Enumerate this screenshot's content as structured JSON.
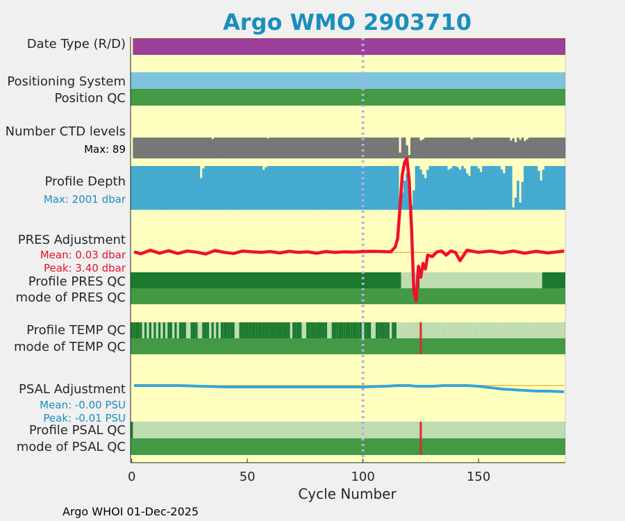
{
  "chart_data": {
    "type": "line",
    "title": "Argo WMO 2903710",
    "xlabel": "Cycle Number",
    "xlim": [
      -0.5,
      187.5
    ],
    "xticks": [
      0,
      50,
      100,
      150
    ],
    "footer": "Argo WHOI 01-Dec-2025",
    "reference_cycle": 100,
    "colors": {
      "background": "#ffffc0",
      "title": "#1a8fbf",
      "date_type": "#9b3f98",
      "positioning": "#7ec4de",
      "qc_good": "#1a7a2e",
      "qc_mode_good": "#449a44",
      "qc_light": "#bfdcb0",
      "ctd": "#777777",
      "depth": "#45aacf",
      "pres_line": "#f0102d",
      "psal_line": "#3aa4d4",
      "zero_line": "#f2b840",
      "marker": "#dd2a2a",
      "ref_line": "#b0b0dd"
    },
    "labels": {
      "date_type": "Date Type (R/D)",
      "positioning": "Positioning System",
      "position_qc": "Position QC",
      "ctd_levels": "Number CTD levels",
      "ctd_max": "Max: 89",
      "profile_depth": "Profile Depth",
      "depth_max": "Max: 2001 dbar",
      "pres_adj": "PRES Adjustment",
      "pres_mean": "Mean: 0.03 dbar",
      "pres_peak": "Peak: 3.40 dbar",
      "profile_pres_qc": "Profile PRES QC",
      "mode_pres_qc": "mode of PRES QC",
      "profile_temp_qc": "Profile TEMP QC",
      "mode_temp_qc": "mode of TEMP QC",
      "psal_adj": "PSAL Adjustment",
      "psal_mean": "Mean: -0.00 PSU",
      "psal_peak": "Peak: -0.01 PSU",
      "profile_psal_qc": "Profile PSAL QC",
      "mode_psal_qc": "mode of PSAL QC"
    },
    "ctd_levels": {
      "max": 89,
      "typical": 72,
      "dropouts": [
        [
          35,
          67
        ],
        [
          59,
          69
        ],
        [
          116,
          20
        ],
        [
          119,
          45
        ],
        [
          120,
          12
        ],
        [
          125,
          62
        ],
        [
          126,
          66
        ],
        [
          147,
          66
        ],
        [
          164,
          62
        ],
        [
          165,
          70
        ],
        [
          166,
          56
        ],
        [
          168,
          64
        ],
        [
          170,
          60
        ],
        [
          171,
          66
        ]
      ]
    },
    "profile_depth": {
      "max_dbar": 2001,
      "typical_dbar": 1800,
      "dropouts": [
        [
          30,
          1300
        ],
        [
          31,
          1700
        ],
        [
          57,
          1650
        ],
        [
          58,
          1750
        ],
        [
          116,
          400
        ],
        [
          117,
          700
        ],
        [
          118,
          1200
        ],
        [
          119,
          1500
        ],
        [
          120,
          600
        ],
        [
          121,
          200
        ],
        [
          122,
          800
        ],
        [
          125,
          1650
        ],
        [
          126,
          1450
        ],
        [
          127,
          1300
        ],
        [
          128,
          1650
        ],
        [
          137,
          1650
        ],
        [
          138,
          1700
        ],
        [
          141,
          1750
        ],
        [
          142,
          1650
        ],
        [
          144,
          1700
        ],
        [
          145,
          1500
        ],
        [
          146,
          1400
        ],
        [
          150,
          1700
        ],
        [
          151,
          1550
        ],
        [
          160,
          1650
        ],
        [
          161,
          1500
        ],
        [
          165,
          100
        ],
        [
          166,
          500
        ],
        [
          167,
          1200
        ],
        [
          168,
          300
        ],
        [
          169,
          1150
        ],
        [
          176,
          1600
        ],
        [
          177,
          1200
        ],
        [
          178,
          1650
        ]
      ]
    },
    "pres_adjustment": {
      "ylim": [
        -1.75,
        3.65
      ],
      "cycles": [
        1,
        4,
        8,
        12,
        16,
        20,
        24,
        28,
        32,
        36,
        40,
        44,
        48,
        52,
        56,
        60,
        64,
        68,
        72,
        76,
        80,
        84,
        88,
        92,
        96,
        100,
        104,
        108,
        112,
        114,
        115,
        116,
        117,
        118,
        119,
        120,
        121,
        122,
        123,
        124,
        125,
        126,
        127,
        128,
        130,
        132,
        134,
        136,
        138,
        140,
        142,
        145,
        150,
        155,
        160,
        165,
        170,
        175,
        180,
        187
      ],
      "values": [
        0.02,
        -0.05,
        0.08,
        -0.03,
        0.06,
        -0.04,
        0.05,
        0.01,
        -0.06,
        0.07,
        0.0,
        -0.04,
        0.05,
        0.02,
        0.0,
        0.03,
        -0.02,
        0.04,
        0.0,
        0.02,
        -0.03,
        0.03,
        0.0,
        0.02,
        0.01,
        0.03,
        0.04,
        0.03,
        0.02,
        0.2,
        0.5,
        1.6,
        2.8,
        3.25,
        3.4,
        2.6,
        0.9,
        -1.4,
        -1.75,
        -0.5,
        -0.9,
        -0.4,
        -0.6,
        -0.1,
        -0.15,
        0.02,
        0.05,
        -0.1,
        0.05,
        0.0,
        -0.3,
        0.08,
        0.0,
        0.05,
        -0.02,
        0.05,
        -0.03,
        0.04,
        -0.02,
        0.05
      ]
    },
    "profile_pres_qc": [
      {
        "from": 0,
        "to": 117,
        "level": "good"
      },
      {
        "from": 117,
        "to": 124,
        "level": "light"
      },
      {
        "from": 124,
        "to": 125,
        "level": "good"
      },
      {
        "from": 125,
        "to": 178,
        "level": "light"
      },
      {
        "from": 178,
        "to": 188,
        "level": "good"
      }
    ],
    "profile_temp_qc_light_cycles": [
      5,
      7,
      9,
      11,
      13,
      15,
      18,
      20,
      24,
      25,
      29,
      30,
      34,
      36,
      38,
      45,
      46,
      69,
      74,
      75,
      85,
      86,
      100,
      104,
      105,
      112,
      115,
      116,
      117,
      118,
      119,
      120,
      121,
      122,
      123,
      124,
      125,
      126,
      127,
      128,
      129,
      130,
      131,
      132,
      133,
      134,
      135,
      136,
      137,
      138,
      139,
      140,
      141,
      142,
      143,
      144,
      145,
      146,
      147,
      148,
      149,
      150,
      151,
      152,
      153,
      154,
      155,
      156,
      157,
      158,
      159,
      160,
      161,
      162,
      163,
      164,
      165,
      166,
      167,
      168,
      169,
      170,
      171,
      172,
      173,
      174,
      175,
      176,
      177,
      178,
      179,
      180,
      181,
      182,
      183,
      184,
      185,
      186,
      187
    ],
    "psal_adjustment": {
      "ylim": [
        -0.035,
        0.015
      ],
      "cycles": [
        1,
        20,
        40,
        60,
        80,
        100,
        110,
        115,
        120,
        123,
        126,
        130,
        135,
        140,
        145,
        150,
        155,
        160,
        165,
        170,
        175,
        180,
        187
      ],
      "values": [
        0.0,
        0.0,
        -0.002,
        -0.002,
        -0.002,
        -0.002,
        -0.001,
        0.0,
        0.0,
        -0.001,
        -0.001,
        -0.001,
        0.0,
        0.0,
        0.0,
        -0.001,
        -0.003,
        -0.005,
        -0.006,
        -0.007,
        -0.008,
        -0.008,
        -0.009
      ]
    },
    "profile_psal_qc_good_cycles": [
      0
    ],
    "qc_marker_cycle": 125
  }
}
